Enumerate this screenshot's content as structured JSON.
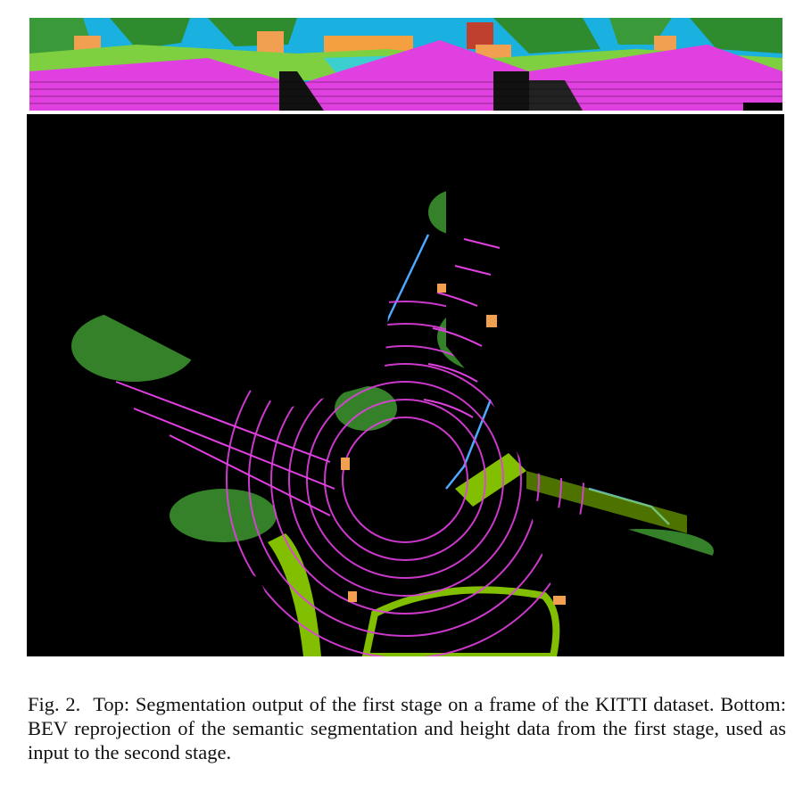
{
  "figure": {
    "label": "Fig. 2.",
    "caption": "Top: Segmentation output of the first stage on a frame of the KITTI dataset. Bottom: BEV reprojection of the semantic segmentation and height data from the first stage, used as input to the second stage."
  },
  "colors": {
    "road": "#e040e0",
    "sidewalk": "#3ccfcf",
    "vegetation": "#2e8b2e",
    "terrain": "#8fd400",
    "car": "#f0a050",
    "building": "#f5a040",
    "fence": "#4fa8ff",
    "sky_background": "#1ab0e0"
  }
}
